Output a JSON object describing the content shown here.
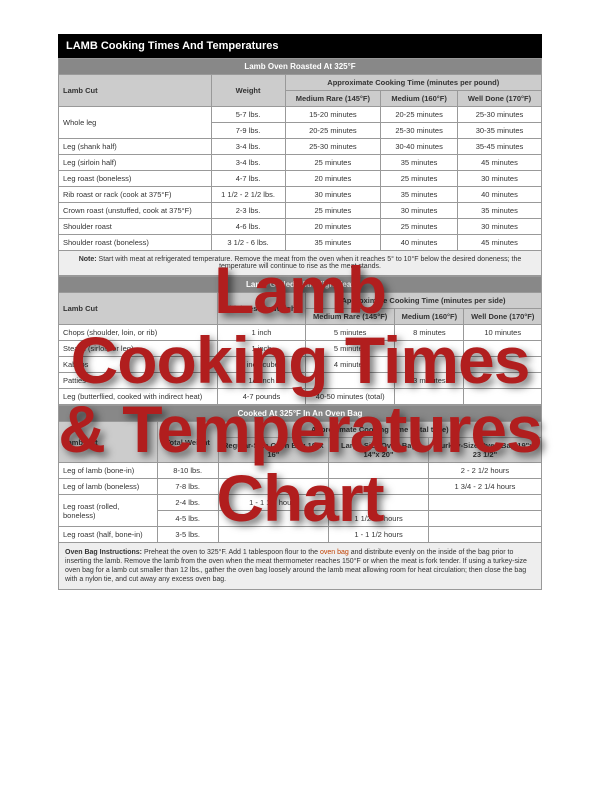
{
  "title": "LAMB Cooking Times And Temperatures",
  "overlay_lines": [
    "Lamb",
    "Cooking Times",
    "& Temperatures",
    "Chart"
  ],
  "colors": {
    "overlay_text": "#b11e1e",
    "overlay_shadow": "rgba(0,0,0,0.55)",
    "title_bg": "#000000",
    "title_fg": "#ffffff",
    "section_bg": "#888888",
    "colhead_bg": "#cccccc",
    "border": "#999999",
    "link": "#c04000"
  },
  "sections": {
    "oven": {
      "header": "Lamb Oven Roasted At 325°F",
      "approx_label": "Approximate Cooking Time (minutes per pound)",
      "columns": [
        "Lamb Cut",
        "Weight",
        "Medium Rare (145°F)",
        "Medium (160°F)",
        "Well Done (170°F)"
      ],
      "rows": [
        [
          "Whole leg",
          "5-7 lbs.",
          "15-20 minutes",
          "20-25 minutes",
          "25-30 minutes"
        ],
        [
          "",
          "7-9 lbs.",
          "20-25 minutes",
          "25-30 minutes",
          "30-35 minutes"
        ],
        [
          "Leg (shank half)",
          "3-4 lbs.",
          "25-30 minutes",
          "30-40 minutes",
          "35-45 minutes"
        ],
        [
          "Leg (sirloin half)",
          "3-4 lbs.",
          "25 minutes",
          "35 minutes",
          "45 minutes"
        ],
        [
          "Leg roast (boneless)",
          "4-7 lbs.",
          "20 minutes",
          "25 minutes",
          "30 minutes"
        ],
        [
          "Rib roast or rack (cook at 375°F)",
          "1 1/2 - 2 1/2 lbs.",
          "30 minutes",
          "35 minutes",
          "40 minutes"
        ],
        [
          "Crown roast (unstuffed, cook at 375°F)",
          "2-3 lbs.",
          "25 minutes",
          "30 minutes",
          "35 minutes"
        ],
        [
          "Shoulder roast",
          "4-6 lbs.",
          "20 minutes",
          "25 minutes",
          "30 minutes"
        ],
        [
          "Shoulder roast (boneless)",
          "3 1/2 - 6 lbs.",
          "35 minutes",
          "40 minutes",
          "45 minutes"
        ]
      ],
      "note_label": "Note:",
      "note_text": " Start with meat at refrigerated temperature. Remove the meat from the oven when it reaches 5° to 10°F below the desired doneness; the temperature will continue to rise as the meat stands."
    },
    "grill": {
      "header": "Lamb Grilled With High Heat",
      "approx_label": "Approximate Cooking Time (minutes per side)",
      "columns": [
        "Lamb Cut",
        "Thickness or Weight",
        "Medium Rare (145°F)",
        "Medium (160°F)",
        "Well Done (170°F)"
      ],
      "rows": [
        [
          "Chops (shoulder, loin, or rib)",
          "1 inch",
          "5 minutes",
          "8 minutes",
          "10 minutes"
        ],
        [
          "Steaks (sirloin or leg)",
          "1 inch",
          "5 minutes",
          "",
          ""
        ],
        [
          "Kabobs",
          "1 inch cubes",
          "4 minutes",
          "",
          ""
        ],
        [
          "Patties",
          "1/2 inch",
          "",
          "3 minutes",
          ""
        ],
        [
          "Leg (butterflied, cooked with indirect heat)",
          "4-7 pounds",
          "40-50 minutes (total)",
          "",
          ""
        ]
      ]
    },
    "ovenbag": {
      "header": "Cooked At 325°F In An Oven Bag",
      "approx_label": "Approximate Cooking Time (total time)",
      "columns": [
        "Lamb Cut",
        "Total Weight",
        "Regular-Size Oven Bag 10\"x 16\"",
        "Large-Size Oven Bag 14\"x 20\"",
        "Turkey-Size Oven Bag 19\"x 23 1/2\""
      ],
      "rows": [
        [
          "Leg of lamb (bone-in)",
          "8-10 lbs.",
          "",
          "",
          "2 - 2 1/2 hours"
        ],
        [
          "Leg of lamb (boneless)",
          "7-8 lbs.",
          "",
          "",
          "1 3/4 - 2 1/4 hours"
        ],
        [
          "Leg roast (rolled, boneless)",
          "2-4 lbs.",
          "1 - 1 1/2 hours",
          "",
          ""
        ],
        [
          "",
          "4-5 lbs.",
          "",
          "1 1/2 - 2 hours",
          ""
        ],
        [
          "Leg roast (half, bone-in)",
          "3-5 lbs.",
          "",
          "1 - 1 1/2 hours",
          ""
        ]
      ],
      "instructions_label": "Oven Bag Instructions:",
      "instructions_pre": " Preheat the oven to 325°F. Add 1 tablespoon flour to the ",
      "instructions_link": "oven bag",
      "instructions_post": " and distribute evenly on the inside of the bag prior to inserting the lamb. Remove the lamb from the oven when the meat thermometer reaches 150°F or when the meat is fork tender. If using a turkey-size oven bag for a lamb cut smaller than 12 lbs., gather the oven bag loosely around the lamb meat allowing room for heat circulation; then close the bag with a nylon tie, and cut away any excess oven bag."
    }
  }
}
